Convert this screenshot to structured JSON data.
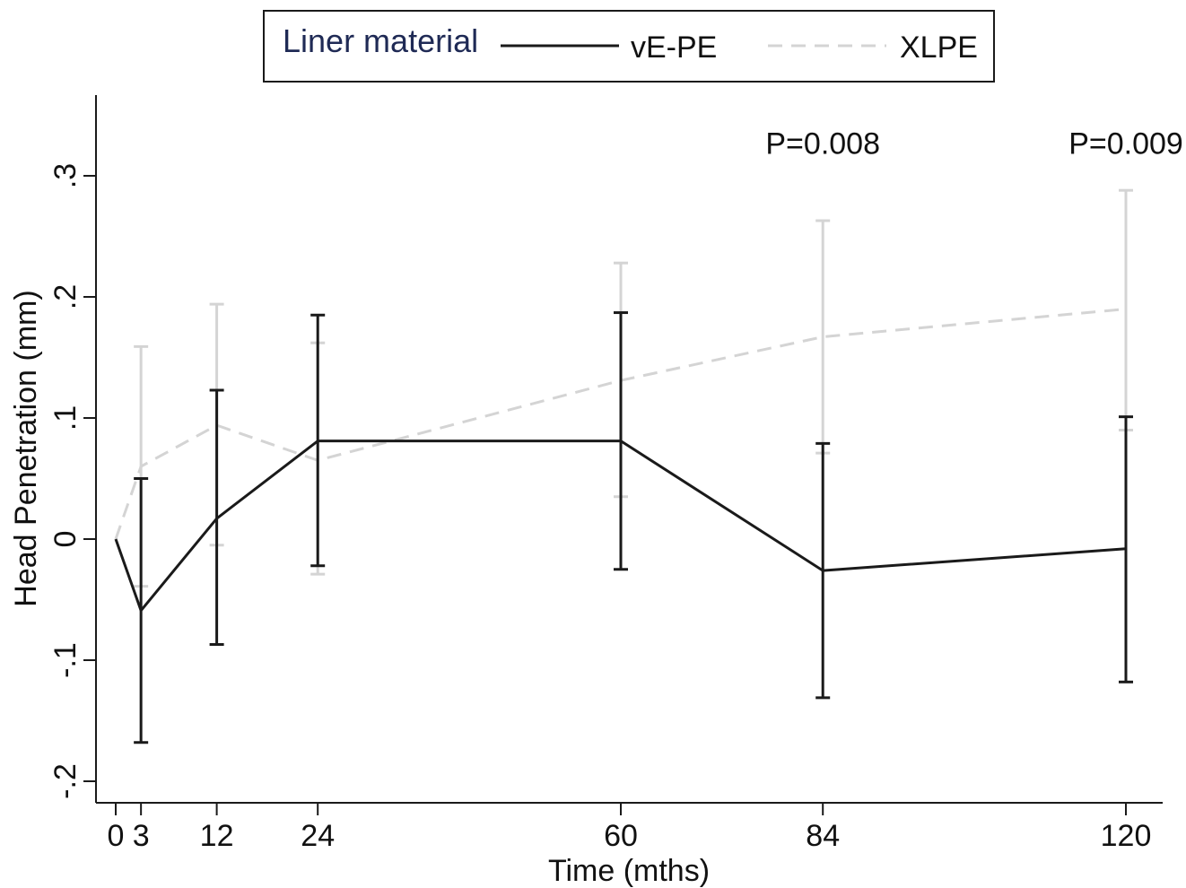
{
  "chart_data": {
    "type": "line",
    "xlabel": "Time (mths)",
    "ylabel": "Head Penetration (mm)",
    "x": [
      0,
      3,
      12,
      24,
      60,
      84,
      120
    ],
    "x_tick_labels": [
      "0",
      "3",
      "12",
      "24",
      "60",
      "84",
      "120"
    ],
    "y_tick_values": [
      -0.2,
      -0.1,
      0,
      0.1,
      0.2,
      0.3
    ],
    "y_tick_labels": [
      "-.2",
      "-.1",
      "0",
      ".1",
      ".2",
      ".3"
    ],
    "xlim": [
      -2,
      124
    ],
    "ylim": [
      -0.22,
      0.365
    ],
    "grid": false,
    "legend": {
      "title": "Liner material",
      "position": "top-center",
      "entries": [
        "vE-PE",
        "XLPE"
      ]
    },
    "series": [
      {
        "name": "vE-PE",
        "color": "#1a1a1a",
        "style": "solid",
        "values": [
          0.0,
          -0.059,
          0.017,
          0.081,
          0.081,
          -0.026,
          -0.008
        ],
        "error_low": [
          null,
          -0.168,
          -0.087,
          -0.022,
          -0.025,
          -0.131,
          -0.118
        ],
        "error_high": [
          null,
          0.05,
          0.123,
          0.185,
          0.187,
          0.079,
          0.101
        ]
      },
      {
        "name": "XLPE",
        "color": "#d4d4d4",
        "style": "dashed",
        "values": [
          0.0,
          0.06,
          0.094,
          0.065,
          0.131,
          0.167,
          0.19
        ],
        "error_low": [
          null,
          -0.039,
          -0.005,
          -0.029,
          0.035,
          0.071,
          0.09
        ],
        "error_high": [
          null,
          0.159,
          0.194,
          0.162,
          0.228,
          0.263,
          0.288
        ]
      }
    ],
    "annotations": [
      {
        "x": 84,
        "y": 0.318,
        "text": "P=0.008"
      },
      {
        "x": 120,
        "y": 0.318,
        "text": "P=0.009"
      }
    ]
  }
}
